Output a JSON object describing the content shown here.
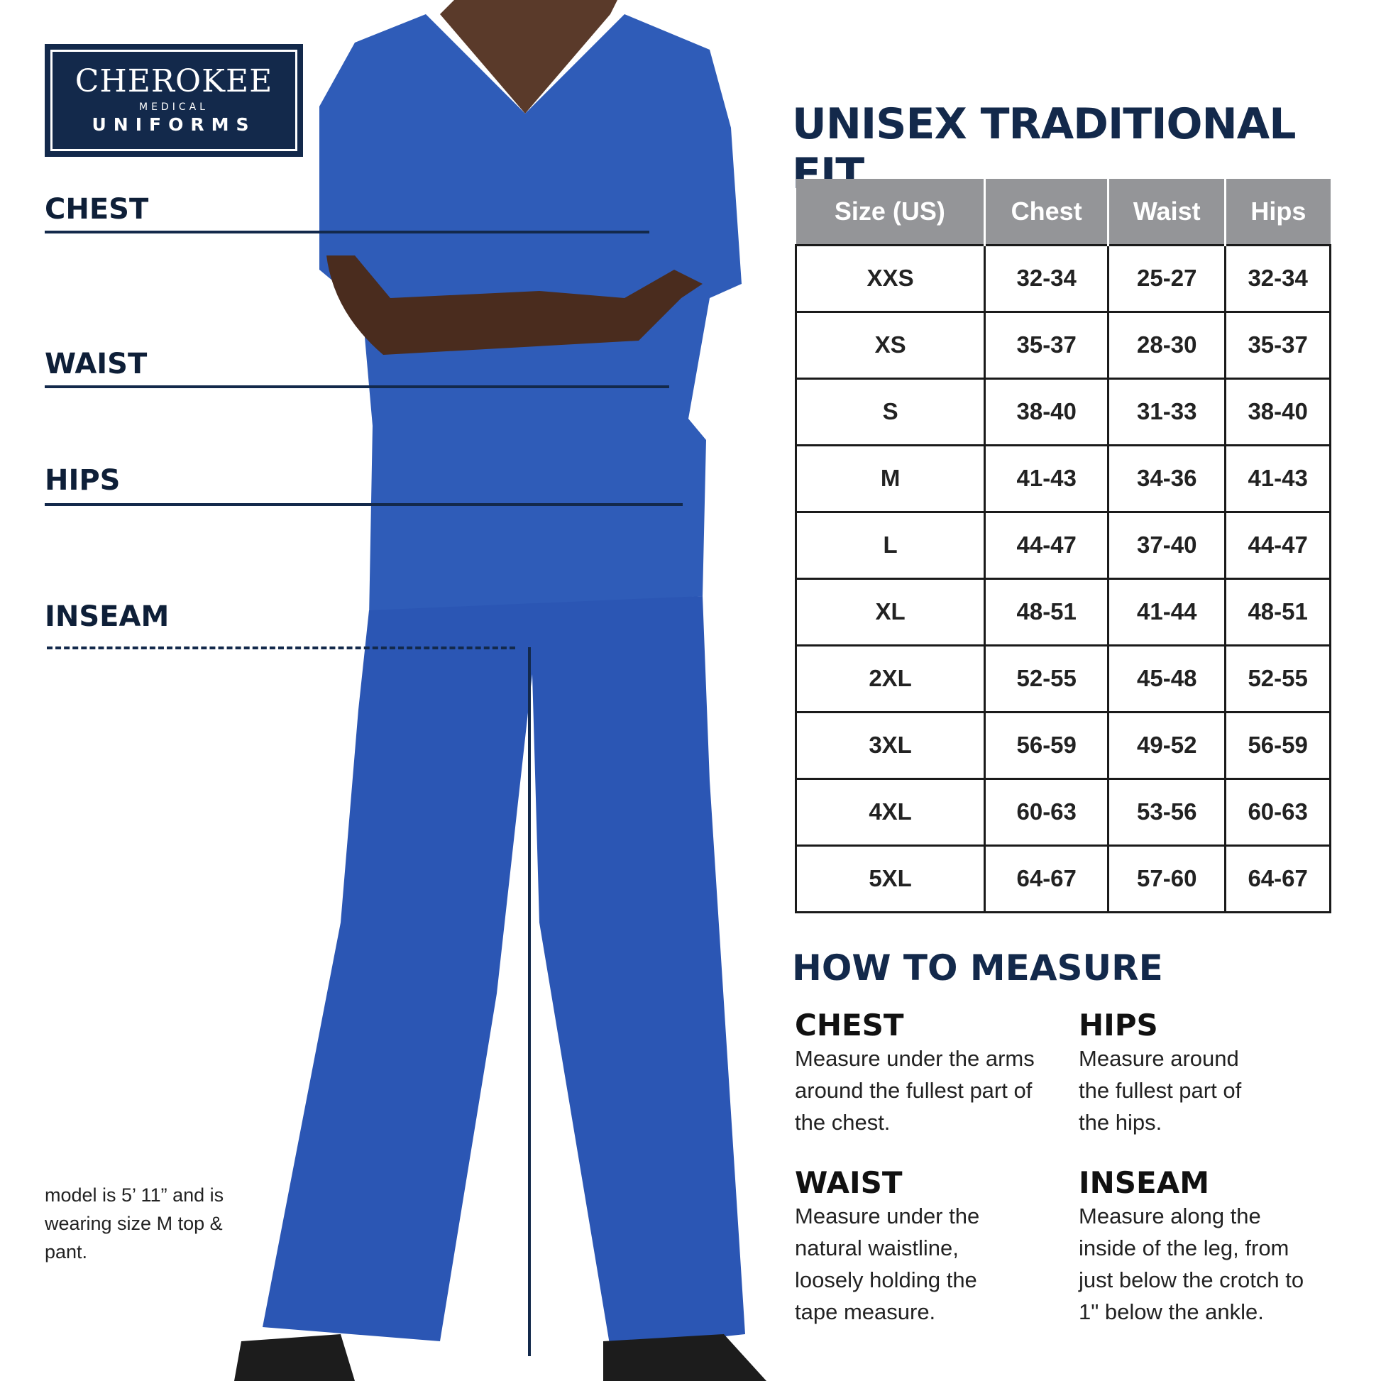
{
  "logo": {
    "brand": "CHEROKEE",
    "sub": "MEDICAL",
    "line": "UNIFORMS"
  },
  "measure_labels": [
    "CHEST",
    "WAIST",
    "HIPS",
    "INSEAM"
  ],
  "title": "UNISEX TRADITIONAL FIT",
  "table": {
    "headers": [
      "Size (US)",
      "Chest",
      "Waist",
      "Hips"
    ],
    "rows": [
      [
        "XXS",
        "32-34",
        "25-27",
        "32-34"
      ],
      [
        "XS",
        "35-37",
        "28-30",
        "35-37"
      ],
      [
        "S",
        "38-40",
        "31-33",
        "38-40"
      ],
      [
        "M",
        "41-43",
        "34-36",
        "41-43"
      ],
      [
        "L",
        "44-47",
        "37-40",
        "44-47"
      ],
      [
        "XL",
        "48-51",
        "41-44",
        "48-51"
      ],
      [
        "2XL",
        "52-55",
        "45-48",
        "52-55"
      ],
      [
        "3XL",
        "56-59",
        "49-52",
        "56-59"
      ],
      [
        "4XL",
        "60-63",
        "53-56",
        "60-63"
      ],
      [
        "5XL",
        "64-67",
        "57-60",
        "64-67"
      ]
    ]
  },
  "how": {
    "title": "HOW TO MEASURE",
    "items": [
      {
        "label": "CHEST",
        "text": "Measure under the arms around the fullest part of the chest."
      },
      {
        "label": "HIPS",
        "text": "Measure around the fullest part of the hips."
      },
      {
        "label": "WAIST",
        "text": "Measure under the natural waistline, loosely holding the tape measure."
      },
      {
        "label": "INSEAM",
        "text": "Measure along the inside of the leg, from just below the crotch to 1\" below the ankle."
      }
    ]
  },
  "model_note": "model is 5’ 11” and is wearing size M top & pant.",
  "colors": {
    "navy": "#13294b",
    "scrub": "#2f5cb8",
    "header_gray": "#949598"
  }
}
